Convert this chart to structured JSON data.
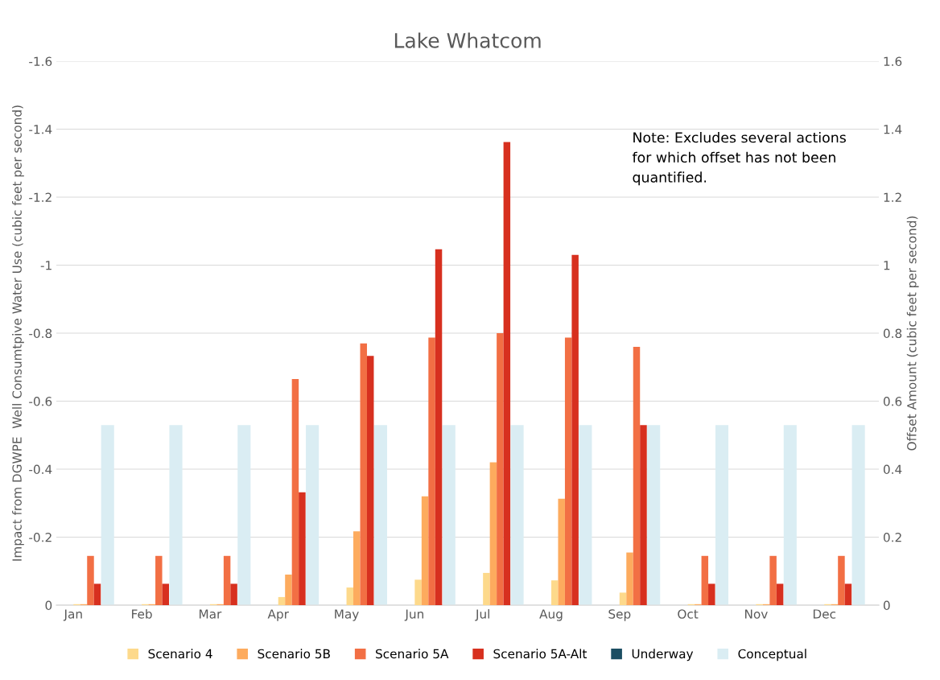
{
  "chart_data": {
    "type": "bar",
    "title": "Lake Whatcom",
    "ylabel": "Impact from DGWPE  Well Consumtpive Water Use (cubic feet per second)",
    "y2label": "Offset Amount (cubic feet per second)",
    "categories": [
      "Jan",
      "Feb",
      "Mar",
      "Apr",
      "May",
      "Jun",
      "Jul",
      "Aug",
      "Sep",
      "Oct",
      "Nov",
      "Dec"
    ],
    "series": [
      {
        "name": "Scenario 4",
        "color": "#fdd98b",
        "values": [
          -0.003,
          -0.003,
          -0.003,
          -0.024,
          -0.052,
          -0.075,
          -0.095,
          -0.073,
          -0.037,
          -0.003,
          -0.003,
          -0.003
        ]
      },
      {
        "name": "Scenario 5B",
        "color": "#fdab5e",
        "values": [
          -0.003,
          -0.003,
          -0.003,
          -0.09,
          -0.217,
          -0.32,
          -0.42,
          -0.313,
          -0.155,
          -0.003,
          -0.003,
          -0.003
        ]
      },
      {
        "name": "Scenario 5A",
        "color": "#f26f44",
        "values": [
          -0.145,
          -0.145,
          -0.145,
          -0.665,
          -0.77,
          -0.787,
          -0.8,
          -0.787,
          -0.76,
          -0.145,
          -0.145,
          -0.145
        ]
      },
      {
        "name": "Scenario 5A-Alt",
        "color": "#d7301f",
        "values": [
          -0.063,
          -0.063,
          -0.063,
          -0.332,
          -0.733,
          -1.047,
          -1.362,
          -1.03,
          -0.53,
          -0.063,
          -0.063,
          -0.063
        ]
      },
      {
        "name": "Underway",
        "color": "#1c4e63",
        "values": [
          0,
          0,
          0,
          0,
          0,
          0,
          0,
          0,
          0,
          0,
          0,
          0
        ]
      },
      {
        "name": "Conceptual",
        "color": "#daedf3",
        "axis": "y2",
        "values": [
          0.53,
          0.53,
          0.53,
          0.53,
          0.53,
          0.53,
          0.53,
          0.53,
          0.53,
          0.53,
          0.53,
          0.53
        ]
      }
    ],
    "ylim": [
      0,
      -1.6
    ],
    "yticks": [
      0,
      -0.2,
      -0.4,
      -0.6,
      -0.8,
      -1,
      -1.2,
      -1.4,
      -1.6
    ],
    "y2lim": [
      0,
      1.6
    ],
    "y2ticks": [
      0,
      0.2,
      0.4,
      0.6,
      0.8,
      1,
      1.2,
      1.4,
      1.6
    ],
    "grid": "y",
    "legend": "bottom",
    "annotations": [
      "Note: Excludes several actions for which offset has not been quantified."
    ]
  }
}
